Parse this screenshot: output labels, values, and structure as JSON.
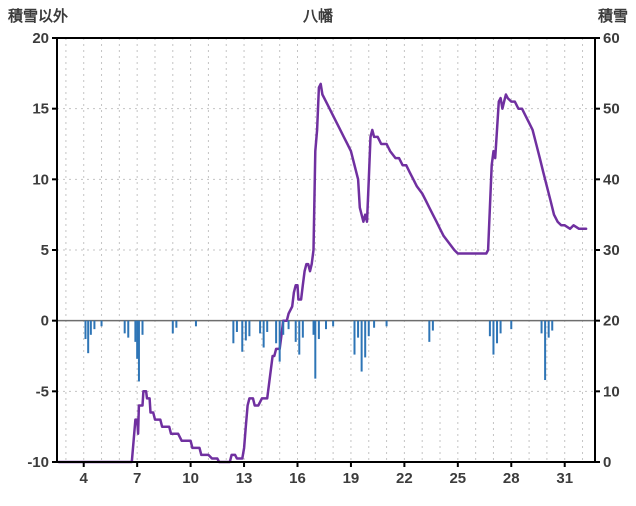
{
  "header": {
    "left_axis_title": "積雪以外",
    "chart_title": "八幡",
    "right_axis_title": "積雪"
  },
  "colors": {
    "snow_line": "#7030a0",
    "bars": "#2e75b6",
    "frame": "#000000",
    "grid": "#c4c4c4",
    "zero_line": "#6e6e6e",
    "text": "#3c3c3c"
  },
  "chart_data": {
    "type": "line",
    "title": "八幡",
    "x_range": [
      2.5,
      32.7
    ],
    "x_ticks": [
      4,
      7,
      10,
      13,
      16,
      19,
      22,
      25,
      28,
      31
    ],
    "left_axis": {
      "label": "積雪以外",
      "range": [
        -10,
        20
      ],
      "ticks": [
        20,
        15,
        10,
        5,
        0,
        -5,
        -10
      ]
    },
    "right_axis": {
      "label": "積雪",
      "range": [
        0,
        60
      ],
      "ticks": [
        60,
        50,
        40,
        30,
        20,
        10,
        0
      ]
    },
    "grid": {
      "h_step": 5,
      "v_step": 1,
      "zero_line_at": 0
    },
    "series": [
      {
        "name": "積雪",
        "kind": "line",
        "axis": "right",
        "color": "#7030a0",
        "points": [
          [
            2.6,
            0
          ],
          [
            6.7,
            0
          ],
          [
            6.8,
            3
          ],
          [
            6.9,
            6
          ],
          [
            7.0,
            6
          ],
          [
            7.05,
            4
          ],
          [
            7.1,
            8
          ],
          [
            7.3,
            8
          ],
          [
            7.35,
            10
          ],
          [
            7.5,
            10
          ],
          [
            7.55,
            9
          ],
          [
            7.7,
            9
          ],
          [
            7.75,
            7
          ],
          [
            7.9,
            7
          ],
          [
            8.0,
            6
          ],
          [
            8.3,
            6
          ],
          [
            8.4,
            5
          ],
          [
            8.8,
            5
          ],
          [
            8.9,
            4
          ],
          [
            9.3,
            4
          ],
          [
            9.5,
            3
          ],
          [
            10.0,
            3
          ],
          [
            10.1,
            2
          ],
          [
            10.5,
            2
          ],
          [
            10.6,
            1
          ],
          [
            11.0,
            1
          ],
          [
            11.2,
            0.5
          ],
          [
            11.5,
            0.5
          ],
          [
            11.6,
            0
          ],
          [
            12.2,
            0
          ],
          [
            12.3,
            1
          ],
          [
            12.5,
            1
          ],
          [
            12.6,
            0.5
          ],
          [
            12.9,
            0.5
          ],
          [
            13.0,
            2
          ],
          [
            13.1,
            5
          ],
          [
            13.2,
            8
          ],
          [
            13.3,
            9
          ],
          [
            13.5,
            9
          ],
          [
            13.6,
            8
          ],
          [
            13.8,
            8
          ],
          [
            14.0,
            9
          ],
          [
            14.3,
            9
          ],
          [
            14.5,
            13
          ],
          [
            14.6,
            15
          ],
          [
            14.7,
            15
          ],
          [
            14.8,
            16
          ],
          [
            15.0,
            16
          ],
          [
            15.1,
            18
          ],
          [
            15.2,
            20
          ],
          [
            15.4,
            20
          ],
          [
            15.5,
            21
          ],
          [
            15.7,
            22
          ],
          [
            15.8,
            24
          ],
          [
            15.9,
            25
          ],
          [
            16.0,
            25
          ],
          [
            16.05,
            23
          ],
          [
            16.2,
            23
          ],
          [
            16.3,
            25
          ],
          [
            16.4,
            27
          ],
          [
            16.5,
            28
          ],
          [
            16.6,
            28
          ],
          [
            16.7,
            27
          ],
          [
            16.8,
            28
          ],
          [
            16.9,
            30
          ],
          [
            17.0,
            44
          ],
          [
            17.1,
            47
          ],
          [
            17.2,
            53
          ],
          [
            17.3,
            53.5
          ],
          [
            17.4,
            52
          ],
          [
            17.6,
            51
          ],
          [
            17.8,
            50
          ],
          [
            18.0,
            49
          ],
          [
            18.2,
            48
          ],
          [
            18.4,
            47
          ],
          [
            18.6,
            46
          ],
          [
            18.8,
            45
          ],
          [
            19.0,
            44
          ],
          [
            19.2,
            42
          ],
          [
            19.4,
            40
          ],
          [
            19.5,
            36
          ],
          [
            19.6,
            35
          ],
          [
            19.7,
            34
          ],
          [
            19.8,
            35
          ],
          [
            19.9,
            34
          ],
          [
            20.0,
            40
          ],
          [
            20.1,
            46
          ],
          [
            20.2,
            47
          ],
          [
            20.3,
            46
          ],
          [
            20.5,
            46
          ],
          [
            20.7,
            45
          ],
          [
            21.0,
            45
          ],
          [
            21.2,
            44
          ],
          [
            21.5,
            43
          ],
          [
            21.7,
            43
          ],
          [
            21.9,
            42
          ],
          [
            22.1,
            42
          ],
          [
            22.3,
            41
          ],
          [
            22.5,
            40
          ],
          [
            22.7,
            39
          ],
          [
            23.0,
            38
          ],
          [
            23.2,
            37
          ],
          [
            23.4,
            36
          ],
          [
            23.6,
            35
          ],
          [
            23.8,
            34
          ],
          [
            24.0,
            33
          ],
          [
            24.2,
            32
          ],
          [
            24.5,
            31
          ],
          [
            24.8,
            30
          ],
          [
            25.0,
            29.5
          ],
          [
            25.2,
            29.5
          ],
          [
            26.6,
            29.5
          ],
          [
            26.7,
            30
          ],
          [
            26.8,
            36
          ],
          [
            26.9,
            42
          ],
          [
            27.0,
            44
          ],
          [
            27.1,
            43
          ],
          [
            27.2,
            47
          ],
          [
            27.3,
            51
          ],
          [
            27.4,
            51.5
          ],
          [
            27.5,
            50
          ],
          [
            27.6,
            51
          ],
          [
            27.7,
            52
          ],
          [
            27.8,
            51.5
          ],
          [
            28.0,
            51
          ],
          [
            28.2,
            51
          ],
          [
            28.4,
            50
          ],
          [
            28.6,
            50
          ],
          [
            28.8,
            49
          ],
          [
            29.0,
            48
          ],
          [
            29.2,
            47
          ],
          [
            29.4,
            45
          ],
          [
            29.6,
            43
          ],
          [
            29.8,
            41
          ],
          [
            30.0,
            39
          ],
          [
            30.2,
            37
          ],
          [
            30.4,
            35
          ],
          [
            30.6,
            34
          ],
          [
            30.8,
            33.5
          ],
          [
            31.0,
            33.5
          ],
          [
            31.3,
            33
          ],
          [
            31.5,
            33.5
          ],
          [
            31.8,
            33
          ],
          [
            32.2,
            33
          ]
        ]
      },
      {
        "name": "積雪以外",
        "kind": "bar",
        "axis": "left",
        "color": "#2e75b6",
        "points": [
          [
            4.1,
            -1.3
          ],
          [
            4.25,
            -2.3
          ],
          [
            4.4,
            -1.0
          ],
          [
            4.6,
            -0.6
          ],
          [
            5.0,
            -0.4
          ],
          [
            6.3,
            -0.9
          ],
          [
            6.5,
            -1.2
          ],
          [
            6.9,
            -1.5
          ],
          [
            7.0,
            -2.7
          ],
          [
            7.1,
            -4.3
          ],
          [
            7.3,
            -1.0
          ],
          [
            9.0,
            -0.9
          ],
          [
            9.2,
            -0.5
          ],
          [
            10.3,
            -0.4
          ],
          [
            12.4,
            -1.6
          ],
          [
            12.6,
            -0.8
          ],
          [
            12.9,
            -2.2
          ],
          [
            13.1,
            -1.4
          ],
          [
            13.3,
            -1.1
          ],
          [
            13.9,
            -0.9
          ],
          [
            14.1,
            -1.9
          ],
          [
            14.3,
            -0.8
          ],
          [
            14.8,
            -1.6
          ],
          [
            15.0,
            -2.9
          ],
          [
            15.2,
            -1.0
          ],
          [
            15.5,
            -0.6
          ],
          [
            15.9,
            -1.5
          ],
          [
            16.1,
            -2.4
          ],
          [
            16.3,
            -1.2
          ],
          [
            16.9,
            -1.0
          ],
          [
            17.0,
            -4.1
          ],
          [
            17.2,
            -1.3
          ],
          [
            17.6,
            -0.6
          ],
          [
            18.0,
            -0.4
          ],
          [
            19.2,
            -2.4
          ],
          [
            19.4,
            -1.2
          ],
          [
            19.6,
            -3.6
          ],
          [
            19.8,
            -2.6
          ],
          [
            20.0,
            -1.1
          ],
          [
            20.3,
            -0.5
          ],
          [
            21.0,
            -0.4
          ],
          [
            23.4,
            -1.5
          ],
          [
            23.6,
            -0.7
          ],
          [
            26.8,
            -1.1
          ],
          [
            27.0,
            -2.4
          ],
          [
            27.2,
            -1.6
          ],
          [
            27.4,
            -0.9
          ],
          [
            28.0,
            -0.6
          ],
          [
            29.7,
            -0.9
          ],
          [
            29.9,
            -4.2
          ],
          [
            30.1,
            -1.2
          ],
          [
            30.3,
            -0.7
          ]
        ]
      }
    ]
  }
}
